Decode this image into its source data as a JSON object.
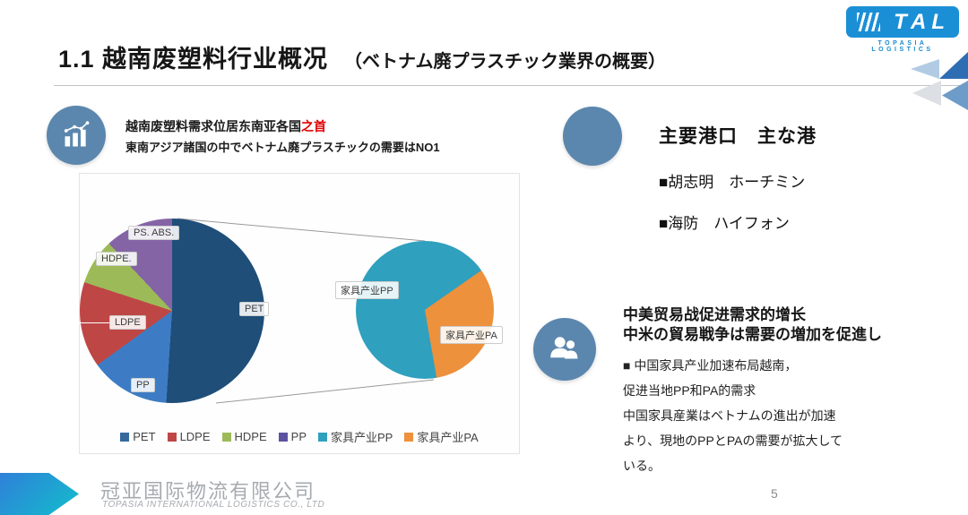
{
  "slide": {
    "title_cn": "1.1 越南废塑料行业概况",
    "title_jp": "（ベトナム廃プラスチック業界の概要）",
    "page_number": "5"
  },
  "logo": {
    "name": "TAL",
    "subtitle": "TOPASIA LOGISTICS",
    "brand_color": "#1b8fd6"
  },
  "demand": {
    "line1_prefix": "越南废塑料需求位居东南亚各国",
    "line1_highlight": "之首",
    "highlight_color": "#e00000",
    "line2": "東南アジア諸国の中でベトナム廃プラスチックの需要はNO1"
  },
  "ports": {
    "heading": "主要港口　主な港",
    "items": [
      "■胡志明　ホーチミン",
      "■海防　ハイフォン"
    ]
  },
  "trade": {
    "heading1": "中美贸易战促进需求的增长",
    "heading2": "中米の貿易戦争は需要の増加を促進し",
    "body": [
      "■ 中国家具产业加速布局越南，",
      "促进当地PP和PA的需求",
      "中国家具産業はベトナムの進出が加速",
      "より、現地のPPとPAの需要が拡大して",
      "いる。"
    ]
  },
  "footer": {
    "company_cn": "冠亚国际物流有限公司",
    "company_en": "TOPASIA INTERNATIONAL LOGISTICS CO., LTD"
  },
  "chart_data": {
    "type": "pie",
    "layout": "pie-of-pie",
    "main_pie": {
      "start_angle": 0,
      "segments": [
        {
          "label": "PET",
          "value": 51,
          "color": "#1f4e79"
        },
        {
          "label": "PP",
          "value": 14,
          "color": "#3d7cc4"
        },
        {
          "label": "LDPE",
          "value": 15,
          "color": "#be4746"
        },
        {
          "label": "HDPE.",
          "value": 8,
          "color": "#9cbb58"
        },
        {
          "label": "PS. ABS.",
          "value": 12,
          "color": "#8564a6"
        }
      ]
    },
    "secondary_pie": {
      "start_angle": 55,
      "segments": [
        {
          "label": "家具产业PA",
          "value": 32,
          "color": "#ed913c"
        },
        {
          "label": "家具产业PP",
          "value": 68,
          "color": "#2fa0be"
        }
      ]
    },
    "legend": [
      {
        "label": "PET",
        "color": "#35699c"
      },
      {
        "label": "LDPE",
        "color": "#be4746"
      },
      {
        "label": "HDPE",
        "color": "#9cbb58"
      },
      {
        "label": "PP",
        "color": "#5b53a0"
      },
      {
        "label": "家具产业PP",
        "color": "#2fa0be"
      },
      {
        "label": "家具产业PA",
        "color": "#ed913c"
      }
    ],
    "legend_position": "bottom"
  }
}
